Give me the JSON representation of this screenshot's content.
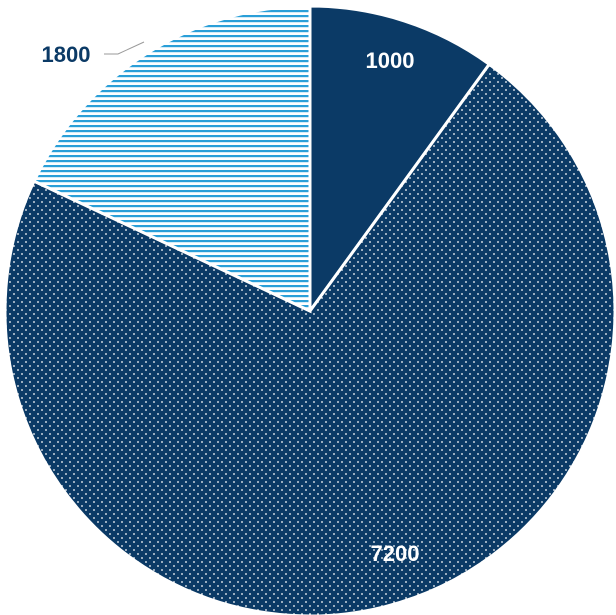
{
  "chart_data": {
    "type": "pie",
    "categories": [
      "",
      "",
      ""
    ],
    "values": [
      1000,
      7200,
      1800
    ],
    "labels": [
      "1000",
      "7200",
      "1800"
    ],
    "colors": {
      "navy": "#0b3a66",
      "light_blue": "#2a9fd8",
      "white": "#ffffff",
      "label_dark": "#0b3a66",
      "label_light": "#ffffff",
      "leader_line": "#9a9a9a"
    },
    "slice_styles": [
      "solid",
      "dotted",
      "horizontal-stripes"
    ],
    "title": "",
    "legend": "none",
    "start": "top",
    "direction": "clockwise"
  }
}
